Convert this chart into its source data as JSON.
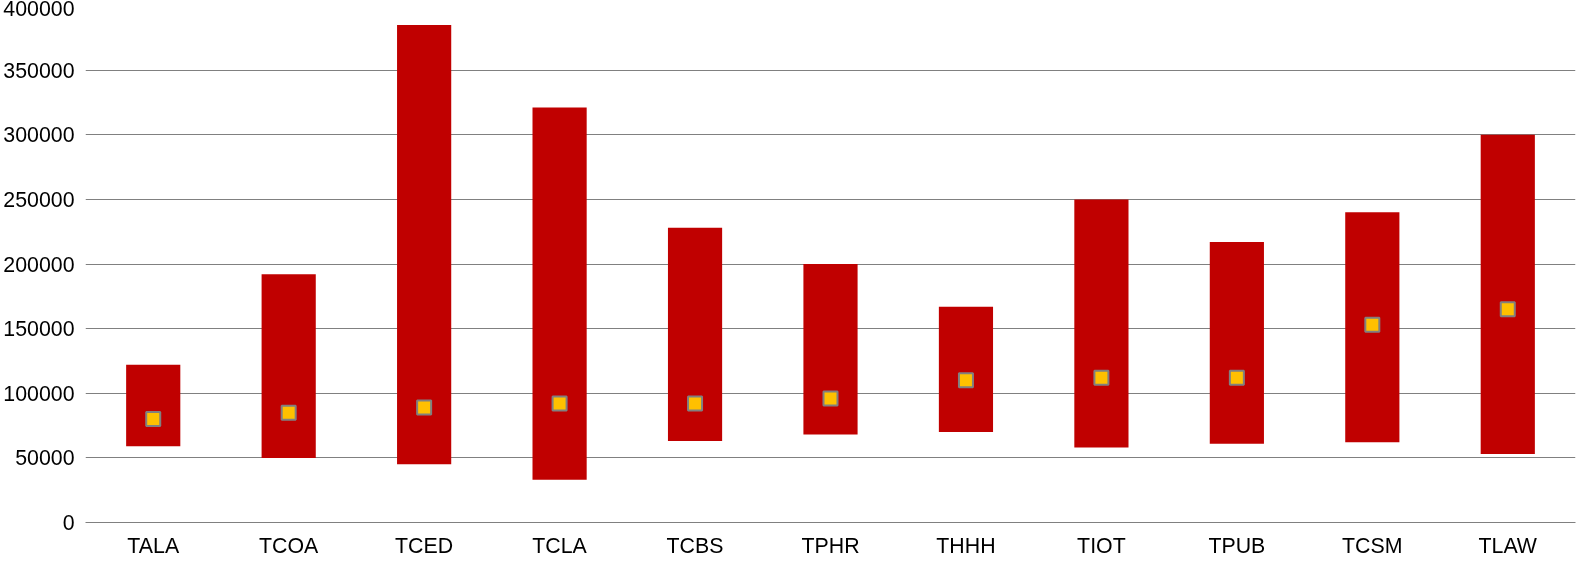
{
  "chart_data": {
    "type": "bar",
    "categories": [
      "TALA",
      "TCOA",
      "TCED",
      "TCLA",
      "TCBS",
      "TPHR",
      "THHH",
      "TIOT",
      "TPUB",
      "TCSM",
      "TLAW"
    ],
    "ylim": [
      0,
      400000
    ],
    "yticks": [
      0,
      50000,
      100000,
      150000,
      200000,
      250000,
      300000,
      350000,
      400000
    ],
    "grid": "y",
    "series": [
      {
        "color": "#c00000",
        "base": [
          59000,
          50000,
          45000,
          33000,
          63000,
          68000,
          70000,
          58000,
          61000,
          62000,
          53000
        ],
        "values": [
          63000,
          142000,
          340000,
          288000,
          165000,
          132000,
          97000,
          192000,
          156000,
          178000,
          247000
        ]
      },
      {
        "type": "scatter",
        "marker": "square",
        "color": "#ffc000",
        "x": [
          "TALA",
          "TCOA",
          "TCED",
          "TCLA",
          "TCBS",
          "TPHR",
          "THHH",
          "TIOT",
          "TPUB",
          "TCSM",
          "TLAW"
        ],
        "values": [
          80000,
          85000,
          89000,
          92000,
          92000,
          96000,
          110000,
          112000,
          112000,
          153000,
          165000
        ]
      }
    ]
  }
}
